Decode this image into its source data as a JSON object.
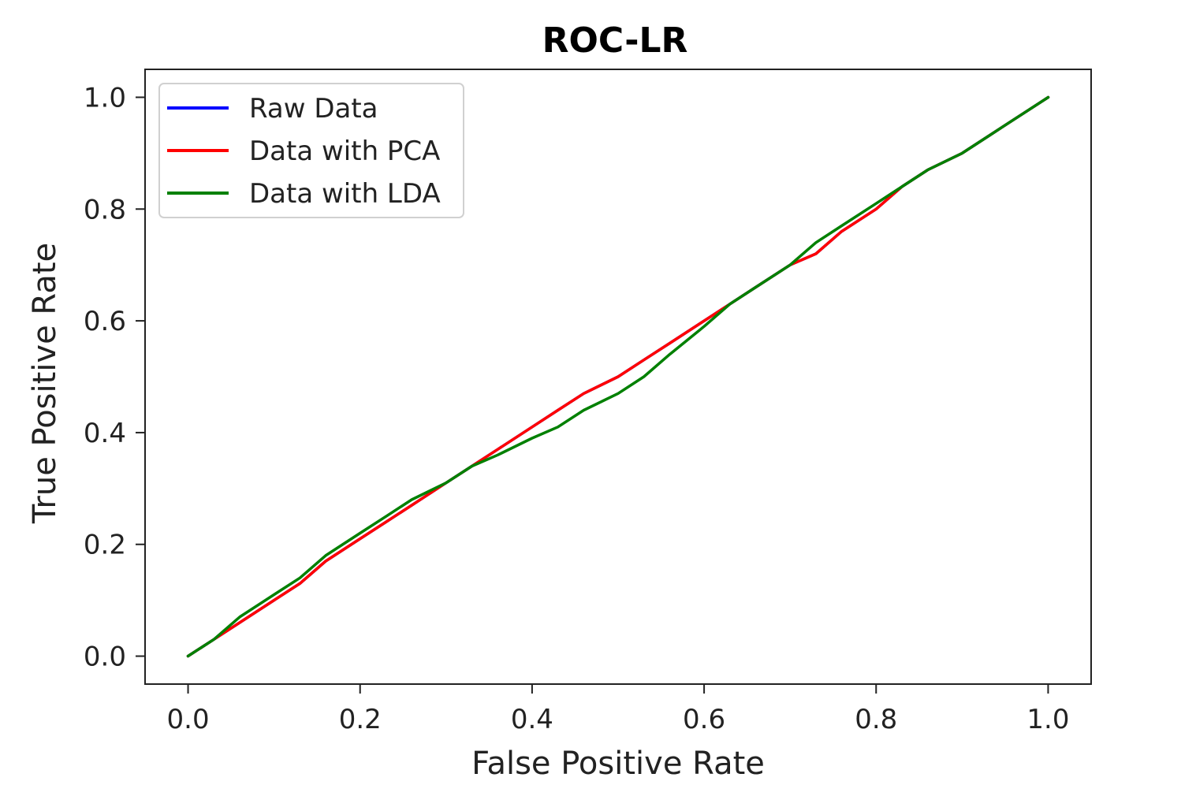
{
  "chart_data": {
    "type": "line",
    "title": "ROC-LR",
    "xlabel": "False Positive Rate",
    "ylabel": "True Positive Rate",
    "xlim": [
      -0.05,
      1.05
    ],
    "ylim": [
      -0.05,
      1.05
    ],
    "xticks": [
      "0.0",
      "0.2",
      "0.4",
      "0.6",
      "0.8",
      "1.0"
    ],
    "yticks": [
      "0.0",
      "0.2",
      "0.4",
      "0.6",
      "0.8",
      "1.0"
    ],
    "grid": false,
    "legend_position": "upper left",
    "series": [
      {
        "name": "Raw Data",
        "color": "#0000ff",
        "x": [
          0.0,
          0.03,
          0.06,
          0.1,
          0.13,
          0.16,
          0.2,
          0.23,
          0.26,
          0.3,
          0.33,
          0.36,
          0.4,
          0.43,
          0.46,
          0.5,
          0.53,
          0.56,
          0.6,
          0.63,
          0.66,
          0.7,
          0.73,
          0.76,
          0.8,
          0.83,
          0.86,
          0.9,
          0.93,
          0.96,
          1.0
        ],
        "y": [
          0.0,
          0.03,
          0.06,
          0.1,
          0.13,
          0.17,
          0.21,
          0.24,
          0.27,
          0.31,
          0.34,
          0.37,
          0.41,
          0.44,
          0.47,
          0.5,
          0.53,
          0.56,
          0.6,
          0.63,
          0.66,
          0.7,
          0.72,
          0.76,
          0.8,
          0.84,
          0.87,
          0.9,
          0.93,
          0.96,
          1.0
        ]
      },
      {
        "name": "Data with PCA",
        "color": "#ff0000",
        "x": [
          0.0,
          0.03,
          0.06,
          0.1,
          0.13,
          0.16,
          0.2,
          0.23,
          0.26,
          0.3,
          0.33,
          0.36,
          0.4,
          0.43,
          0.46,
          0.5,
          0.53,
          0.56,
          0.6,
          0.63,
          0.66,
          0.7,
          0.73,
          0.76,
          0.8,
          0.83,
          0.86,
          0.9,
          0.93,
          0.96,
          1.0
        ],
        "y": [
          0.0,
          0.03,
          0.06,
          0.1,
          0.13,
          0.17,
          0.21,
          0.24,
          0.27,
          0.31,
          0.34,
          0.37,
          0.41,
          0.44,
          0.47,
          0.5,
          0.53,
          0.56,
          0.6,
          0.63,
          0.66,
          0.7,
          0.72,
          0.76,
          0.8,
          0.84,
          0.87,
          0.9,
          0.93,
          0.96,
          1.0
        ]
      },
      {
        "name": "Data with LDA",
        "color": "#008000",
        "x": [
          0.0,
          0.03,
          0.06,
          0.1,
          0.13,
          0.16,
          0.2,
          0.23,
          0.26,
          0.3,
          0.33,
          0.36,
          0.4,
          0.43,
          0.46,
          0.5,
          0.53,
          0.56,
          0.6,
          0.63,
          0.66,
          0.7,
          0.73,
          0.76,
          0.8,
          0.83,
          0.86,
          0.9,
          0.93,
          0.96,
          1.0
        ],
        "y": [
          0.0,
          0.03,
          0.07,
          0.11,
          0.14,
          0.18,
          0.22,
          0.25,
          0.28,
          0.31,
          0.34,
          0.36,
          0.39,
          0.41,
          0.44,
          0.47,
          0.5,
          0.54,
          0.59,
          0.63,
          0.66,
          0.7,
          0.74,
          0.77,
          0.81,
          0.84,
          0.87,
          0.9,
          0.93,
          0.96,
          1.0
        ]
      }
    ]
  }
}
